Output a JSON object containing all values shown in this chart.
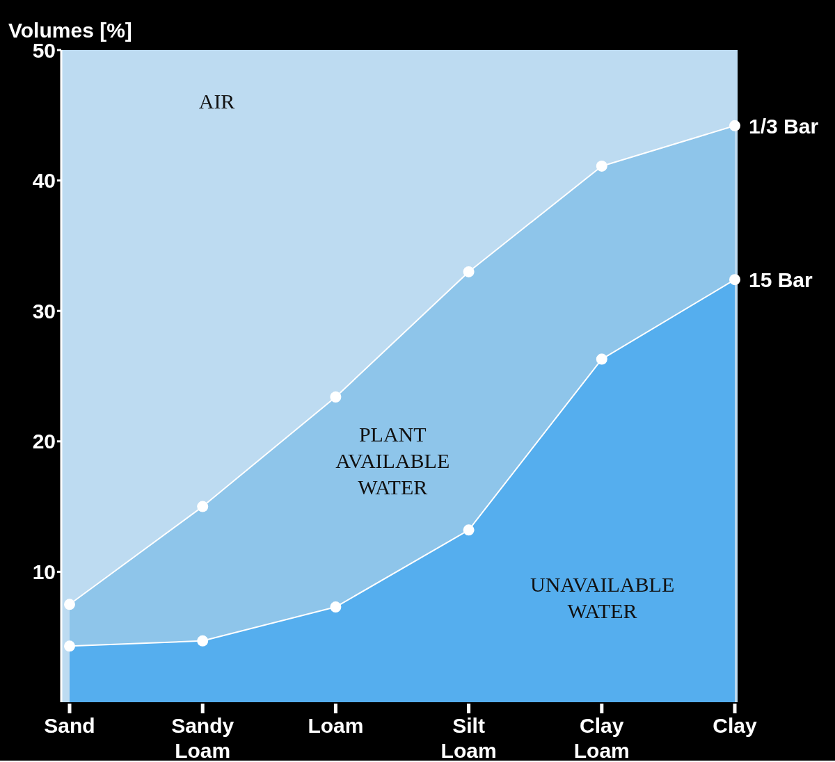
{
  "chart_data": {
    "type": "area",
    "ylabel": "Volumes [%]",
    "categories": [
      "Sand",
      "Sandy Loam",
      "Loam",
      "Silt Loam",
      "Clay Loam",
      "Clay"
    ],
    "series": [
      {
        "name": "1/3 Bar",
        "color": "#8ec5ea",
        "values": [
          7.5,
          15.0,
          23.4,
          33.0,
          41.1,
          44.2
        ]
      },
      {
        "name": "15 Bar",
        "color": "#55aeee",
        "values": [
          4.3,
          4.7,
          7.3,
          13.2,
          26.3,
          32.4
        ]
      }
    ],
    "ylim": [
      0,
      50
    ],
    "yticks": [
      10,
      20,
      30,
      40,
      50
    ],
    "grid": false,
    "legend": false,
    "marker": "circle",
    "line_style": "solid",
    "annotations": [
      "AIR",
      "PLANT AVAILABLE WATER",
      "UNAVAILABLE WATER"
    ]
  }
}
